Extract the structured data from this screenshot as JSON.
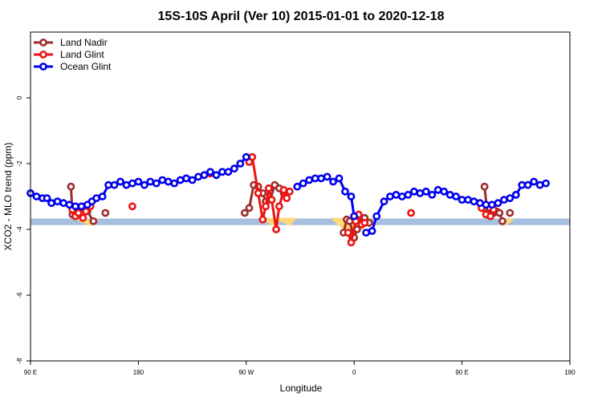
{
  "chart_data": {
    "type": "line",
    "title": "15S-10S April (Ver 10)   2015-01-01 to 2020-12-18",
    "xlabel": "Longitude",
    "ylabel": "XCO2 - MLO trend (ppm)",
    "xlim": [
      -90,
      270
    ],
    "ylim": [
      -8,
      2
    ],
    "x_ticks": [
      {
        "value": -90,
        "label": "90 E"
      },
      {
        "value": -18,
        "label": "180"
      },
      {
        "value": 54,
        "label": "90 W"
      },
      {
        "value": 126,
        "label": "0"
      },
      {
        "value": 198,
        "label": "90 E"
      },
      {
        "value": 270,
        "label": "180"
      }
    ],
    "y_ticks": [
      {
        "value": 0,
        "label": "0"
      },
      {
        "value": -2,
        "label": "-2"
      },
      {
        "value": -4,
        "label": "-4"
      },
      {
        "value": -6,
        "label": "-6"
      },
      {
        "value": -8,
        "label": "-8"
      }
    ],
    "grid": false,
    "legend_position": "top-left",
    "band": {
      "y_from": -3.67,
      "y_to": -3.87,
      "color": "#a7bfde"
    },
    "land_fill_color": "#ffd97a",
    "land_segments": [
      {
        "x": [
          -60,
          -50,
          -44
        ],
        "y": [
          -3.7,
          -3.9,
          -3.7
        ]
      },
      {
        "x": [
          65,
          71,
          77,
          83,
          88
        ],
        "y": [
          -3.65,
          -3.9,
          -3.75,
          -3.9,
          -3.65
        ]
      },
      {
        "x": [
          110,
          122,
          132,
          138
        ],
        "y": [
          -3.65,
          -4.15,
          -4.0,
          -3.65
        ]
      },
      {
        "x": [
          222,
          227,
          233
        ],
        "y": [
          -3.65,
          -3.9,
          -3.7
        ]
      }
    ],
    "series": [
      {
        "name": "Land Nadir",
        "color": "#9b2d2d",
        "points": [
          [
            -63,
            -2.7
          ],
          [
            -62,
            -3.55
          ],
          [
            -60,
            -3.5
          ],
          [
            -58,
            -3.45
          ],
          [
            -56,
            -3.5
          ],
          [
            -52,
            -3.45
          ],
          [
            -48,
            -3.75
          ],
          null,
          [
            -40,
            -3.5
          ],
          null,
          [
            53,
            -3.5
          ],
          [
            56,
            -3.35
          ],
          [
            59,
            -2.65
          ],
          [
            62,
            -2.7
          ],
          [
            65,
            -2.9
          ],
          [
            67,
            -3.15
          ],
          [
            70,
            -3.1
          ],
          [
            73,
            -2.65
          ],
          [
            76,
            -2.75
          ],
          [
            79,
            -2.9
          ],
          null,
          [
            119,
            -4.1
          ],
          [
            121,
            -3.7
          ],
          [
            123,
            -3.75
          ],
          [
            126,
            -4.25
          ],
          [
            128,
            -4.0
          ],
          [
            131,
            -3.75
          ],
          [
            133,
            -3.65
          ],
          [
            136,
            -3.8
          ],
          null,
          [
            213,
            -2.7
          ],
          [
            215,
            -3.5
          ],
          [
            217,
            -3.55
          ],
          [
            219,
            -3.5
          ],
          [
            221,
            -3.45
          ],
          [
            223,
            -3.5
          ],
          [
            225,
            -3.75
          ],
          null,
          [
            230,
            -3.5
          ]
        ]
      },
      {
        "name": "Land Glint",
        "color": "#ee1111",
        "points": [
          [
            -62,
            -3.4
          ],
          [
            -60,
            -3.6
          ],
          [
            -58,
            -3.5
          ],
          [
            -55,
            -3.65
          ],
          [
            -53,
            -3.45
          ],
          [
            -50,
            -3.3
          ],
          null,
          [
            -22,
            -3.3
          ],
          null,
          [
            30,
            -2.3
          ],
          null,
          [
            56,
            -1.95
          ],
          [
            58,
            -1.8
          ],
          [
            62,
            -2.9
          ],
          [
            65,
            -3.7
          ],
          [
            67,
            -3.3
          ],
          [
            69,
            -2.75
          ],
          [
            71,
            -3.1
          ],
          [
            74,
            -4.0
          ],
          [
            76,
            -3.3
          ],
          [
            79,
            -2.8
          ],
          [
            81,
            -3.05
          ],
          [
            83,
            -2.85
          ],
          null,
          [
            122,
            -4.1
          ],
          [
            124,
            -4.4
          ],
          [
            127,
            -3.75
          ],
          [
            129,
            -3.55
          ],
          [
            131,
            -3.85
          ],
          [
            133,
            -3.8
          ],
          null,
          [
            164,
            -3.5
          ],
          null,
          [
            211,
            -3.35
          ],
          [
            214,
            -3.55
          ],
          [
            217,
            -3.6
          ],
          [
            219,
            -3.4
          ]
        ]
      },
      {
        "name": "Ocean Glint",
        "color": "#0000ee",
        "points": [
          [
            -90,
            -2.9
          ],
          [
            -86,
            -3.0
          ],
          [
            -82,
            -3.05
          ],
          [
            -79,
            -3.05
          ],
          [
            -76,
            -3.2
          ],
          [
            -72,
            -3.15
          ],
          [
            -68,
            -3.2
          ],
          [
            -64,
            -3.25
          ],
          [
            -60,
            -3.3
          ],
          [
            -56,
            -3.3
          ],
          [
            -52,
            -3.25
          ],
          [
            -49,
            -3.15
          ],
          [
            -46,
            -3.05
          ],
          [
            -42,
            -3.0
          ],
          [
            -38,
            -2.65
          ],
          [
            -34,
            -2.65
          ],
          [
            -30,
            -2.55
          ],
          [
            -26,
            -2.65
          ],
          [
            -22,
            -2.6
          ],
          [
            -18,
            -2.55
          ],
          [
            -14,
            -2.65
          ],
          [
            -10,
            -2.55
          ],
          [
            -6,
            -2.6
          ],
          [
            -2,
            -2.5
          ],
          [
            2,
            -2.55
          ],
          [
            6,
            -2.6
          ],
          [
            10,
            -2.5
          ],
          [
            14,
            -2.45
          ],
          [
            18,
            -2.5
          ],
          [
            22,
            -2.4
          ],
          [
            26,
            -2.35
          ],
          [
            30,
            -2.25
          ],
          [
            34,
            -2.35
          ],
          [
            38,
            -2.25
          ],
          [
            42,
            -2.25
          ],
          [
            46,
            -2.15
          ],
          [
            50,
            -2.0
          ],
          [
            54,
            -1.8
          ],
          null,
          [
            88,
            -2.7
          ],
          [
            92,
            -2.6
          ],
          [
            96,
            -2.5
          ],
          [
            100,
            -2.45
          ],
          [
            104,
            -2.45
          ],
          [
            108,
            -2.4
          ],
          [
            112,
            -2.55
          ],
          [
            116,
            -2.45
          ],
          [
            120,
            -2.85
          ],
          [
            124,
            -3.0
          ],
          [
            126,
            -3.6
          ],
          null,
          [
            134,
            -4.1
          ],
          [
            138,
            -4.05
          ],
          [
            141,
            -3.6
          ],
          [
            146,
            -3.15
          ],
          [
            150,
            -3.0
          ],
          [
            154,
            -2.95
          ],
          [
            158,
            -3.0
          ],
          [
            162,
            -2.95
          ],
          [
            166,
            -2.85
          ],
          [
            170,
            -2.9
          ],
          [
            174,
            -2.85
          ],
          [
            178,
            -2.95
          ],
          [
            182,
            -2.8
          ],
          [
            186,
            -2.85
          ],
          [
            190,
            -2.95
          ],
          [
            194,
            -3.0
          ],
          [
            198,
            -3.1
          ],
          [
            202,
            -3.1
          ],
          [
            206,
            -3.15
          ],
          [
            210,
            -3.2
          ],
          [
            214,
            -3.25
          ],
          [
            218,
            -3.25
          ],
          [
            222,
            -3.2
          ],
          [
            226,
            -3.1
          ],
          [
            230,
            -3.05
          ],
          [
            234,
            -2.95
          ],
          [
            238,
            -2.65
          ],
          [
            242,
            -2.65
          ],
          [
            246,
            -2.55
          ],
          [
            250,
            -2.65
          ],
          [
            254,
            -2.6
          ]
        ]
      }
    ]
  }
}
